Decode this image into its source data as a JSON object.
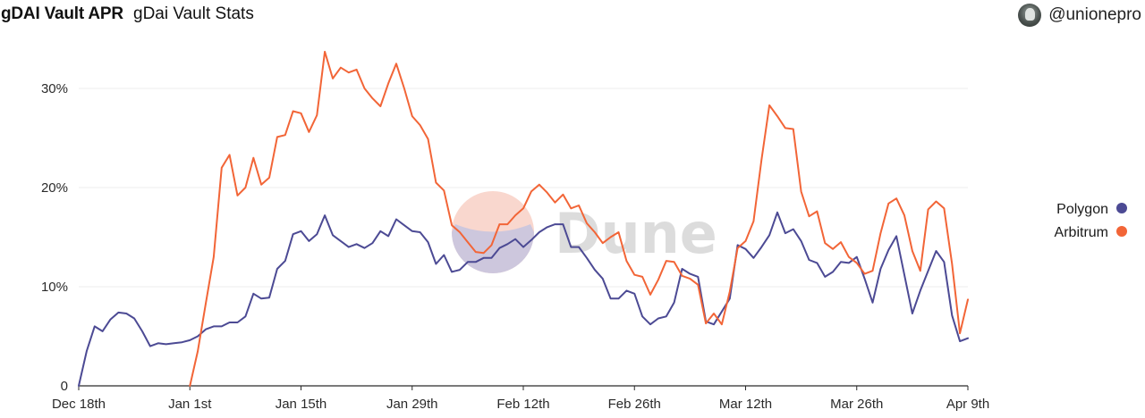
{
  "header": {
    "title": "gDAI Vault APR",
    "subtitle": "gDai Vault Stats",
    "username": "@unionepro"
  },
  "watermark": "Dune",
  "chart_data": {
    "type": "line",
    "title": "gDAI Vault APR",
    "subtitle": "gDai Vault Stats",
    "xlabel": "",
    "ylabel": "",
    "x_ticks": [
      {
        "label": "Dec 18th",
        "day": 0
      },
      {
        "label": "Jan 1st",
        "day": 14
      },
      {
        "label": "Jan 15th",
        "day": 28
      },
      {
        "label": "Jan 29th",
        "day": 42
      },
      {
        "label": "Feb 12th",
        "day": 56
      },
      {
        "label": "Feb 26th",
        "day": 70
      },
      {
        "label": "Mar 12th",
        "day": 84
      },
      {
        "label": "Mar 26th",
        "day": 98
      },
      {
        "label": "Apr 9th",
        "day": 112
      }
    ],
    "y_ticks": [
      {
        "label": "0",
        "value": 0
      },
      {
        "label": "10%",
        "value": 10
      },
      {
        "label": "20%",
        "value": 20
      },
      {
        "label": "30%",
        "value": 30
      }
    ],
    "xlim": [
      0,
      112
    ],
    "ylim": [
      0,
      34
    ],
    "grid": "horizontal",
    "legend": "right",
    "series": [
      {
        "name": "Polygon",
        "color": "#4c4a94",
        "points": [
          [
            0,
            0
          ],
          [
            1,
            3.5
          ],
          [
            2,
            6.0
          ],
          [
            3,
            5.5
          ],
          [
            4,
            6.7
          ],
          [
            5,
            7.4
          ],
          [
            6,
            7.3
          ],
          [
            7,
            6.8
          ],
          [
            8,
            5.5
          ],
          [
            9,
            4.0
          ],
          [
            10,
            4.3
          ],
          [
            11,
            4.2
          ],
          [
            12,
            4.3
          ],
          [
            13,
            4.4
          ],
          [
            14,
            4.6
          ],
          [
            15,
            5.0
          ],
          [
            16,
            5.7
          ],
          [
            17,
            6.0
          ],
          [
            18,
            6.0
          ],
          [
            19,
            6.4
          ],
          [
            20,
            6.4
          ],
          [
            21,
            7.0
          ],
          [
            22,
            9.3
          ],
          [
            23,
            8.8
          ],
          [
            24,
            8.9
          ],
          [
            25,
            11.8
          ],
          [
            26,
            12.6
          ],
          [
            27,
            15.3
          ],
          [
            28,
            15.6
          ],
          [
            29,
            14.6
          ],
          [
            30,
            15.3
          ],
          [
            31,
            17.2
          ],
          [
            32,
            15.2
          ],
          [
            33,
            14.6
          ],
          [
            34,
            14.0
          ],
          [
            35,
            14.3
          ],
          [
            36,
            13.9
          ],
          [
            37,
            14.4
          ],
          [
            38,
            15.6
          ],
          [
            39,
            15.1
          ],
          [
            40,
            16.8
          ],
          [
            41,
            16.2
          ],
          [
            42,
            15.6
          ],
          [
            43,
            15.5
          ],
          [
            44,
            14.5
          ],
          [
            45,
            12.3
          ],
          [
            46,
            13.2
          ],
          [
            47,
            11.5
          ],
          [
            48,
            11.7
          ],
          [
            49,
            12.5
          ],
          [
            50,
            12.5
          ],
          [
            51,
            12.9
          ],
          [
            52,
            12.9
          ],
          [
            53,
            13.9
          ],
          [
            54,
            14.3
          ],
          [
            55,
            14.8
          ],
          [
            56,
            14.0
          ],
          [
            57,
            14.7
          ],
          [
            58,
            15.5
          ],
          [
            59,
            16.0
          ],
          [
            60,
            16.3
          ],
          [
            61,
            16.3
          ],
          [
            62,
            14.0
          ],
          [
            63,
            14.0
          ],
          [
            64,
            12.9
          ],
          [
            65,
            11.7
          ],
          [
            66,
            10.8
          ],
          [
            67,
            8.8
          ],
          [
            68,
            8.8
          ],
          [
            69,
            9.6
          ],
          [
            70,
            9.3
          ],
          [
            71,
            7.0
          ],
          [
            72,
            6.2
          ],
          [
            73,
            6.8
          ],
          [
            74,
            7.0
          ],
          [
            75,
            8.4
          ],
          [
            76,
            11.8
          ],
          [
            77,
            11.3
          ],
          [
            78,
            11.0
          ],
          [
            79,
            6.5
          ],
          [
            80,
            6.2
          ],
          [
            81,
            7.5
          ],
          [
            82,
            8.8
          ],
          [
            83,
            14.2
          ],
          [
            84,
            13.8
          ],
          [
            85,
            12.9
          ],
          [
            86,
            14.0
          ],
          [
            87,
            15.2
          ],
          [
            88,
            17.5
          ],
          [
            89,
            15.4
          ],
          [
            90,
            15.8
          ],
          [
            91,
            14.6
          ],
          [
            92,
            12.7
          ],
          [
            93,
            12.4
          ],
          [
            94,
            11.0
          ],
          [
            95,
            11.5
          ],
          [
            96,
            12.5
          ],
          [
            97,
            12.4
          ],
          [
            98,
            13.0
          ],
          [
            99,
            10.8
          ],
          [
            100,
            8.4
          ],
          [
            101,
            11.8
          ],
          [
            102,
            13.7
          ],
          [
            103,
            15.1
          ],
          [
            104,
            11.2
          ],
          [
            105,
            7.3
          ],
          [
            106,
            9.6
          ],
          [
            107,
            11.6
          ],
          [
            108,
            13.6
          ],
          [
            109,
            12.5
          ],
          [
            110,
            7.1
          ],
          [
            111,
            4.5
          ],
          [
            112,
            4.8
          ]
        ]
      },
      {
        "name": "Arbitrum",
        "color": "#f26537",
        "points": [
          [
            14,
            0
          ],
          [
            15,
            3.5
          ],
          [
            16,
            8.3
          ],
          [
            17,
            13.0
          ],
          [
            18,
            22.0
          ],
          [
            19,
            23.3
          ],
          [
            20,
            19.2
          ],
          [
            21,
            20.0
          ],
          [
            22,
            23.0
          ],
          [
            23,
            20.3
          ],
          [
            24,
            21.0
          ],
          [
            25,
            25.1
          ],
          [
            26,
            25.3
          ],
          [
            27,
            27.7
          ],
          [
            28,
            27.5
          ],
          [
            29,
            25.6
          ],
          [
            30,
            27.3
          ],
          [
            31,
            33.7
          ],
          [
            32,
            31.0
          ],
          [
            33,
            32.1
          ],
          [
            34,
            31.6
          ],
          [
            35,
            31.9
          ],
          [
            36,
            30.0
          ],
          [
            37,
            29.0
          ],
          [
            38,
            28.2
          ],
          [
            39,
            30.5
          ],
          [
            40,
            32.5
          ],
          [
            41,
            30.0
          ],
          [
            42,
            27.2
          ],
          [
            43,
            26.3
          ],
          [
            44,
            24.9
          ],
          [
            45,
            20.5
          ],
          [
            46,
            19.7
          ],
          [
            47,
            16.2
          ],
          [
            48,
            15.5
          ],
          [
            49,
            14.5
          ],
          [
            50,
            13.5
          ],
          [
            51,
            13.4
          ],
          [
            52,
            14.2
          ],
          [
            53,
            16.3
          ],
          [
            54,
            16.3
          ],
          [
            55,
            17.2
          ],
          [
            56,
            17.9
          ],
          [
            57,
            19.6
          ],
          [
            58,
            20.3
          ],
          [
            59,
            19.5
          ],
          [
            60,
            18.5
          ],
          [
            61,
            19.3
          ],
          [
            62,
            17.9
          ],
          [
            63,
            18.2
          ],
          [
            64,
            16.4
          ],
          [
            65,
            15.5
          ],
          [
            66,
            14.4
          ],
          [
            67,
            15.0
          ],
          [
            68,
            15.5
          ],
          [
            69,
            12.6
          ],
          [
            70,
            11.2
          ],
          [
            71,
            11.0
          ],
          [
            72,
            9.2
          ],
          [
            73,
            10.7
          ],
          [
            74,
            12.6
          ],
          [
            75,
            12.5
          ],
          [
            76,
            11.1
          ],
          [
            77,
            10.8
          ],
          [
            78,
            10.2
          ],
          [
            79,
            6.3
          ],
          [
            80,
            7.3
          ],
          [
            81,
            6.2
          ],
          [
            82,
            9.5
          ],
          [
            83,
            13.9
          ],
          [
            84,
            14.6
          ],
          [
            85,
            16.6
          ],
          [
            86,
            22.8
          ],
          [
            87,
            28.3
          ],
          [
            88,
            27.2
          ],
          [
            89,
            26.0
          ],
          [
            90,
            25.9
          ],
          [
            91,
            19.6
          ],
          [
            92,
            17.1
          ],
          [
            93,
            17.6
          ],
          [
            94,
            14.4
          ],
          [
            95,
            13.8
          ],
          [
            96,
            14.5
          ],
          [
            97,
            13.0
          ],
          [
            98,
            12.4
          ],
          [
            99,
            11.3
          ],
          [
            100,
            11.6
          ],
          [
            101,
            15.4
          ],
          [
            102,
            18.4
          ],
          [
            103,
            18.9
          ],
          [
            104,
            17.2
          ],
          [
            105,
            13.6
          ],
          [
            106,
            11.6
          ],
          [
            107,
            17.8
          ],
          [
            108,
            18.6
          ],
          [
            109,
            17.9
          ],
          [
            110,
            12.3
          ],
          [
            111,
            5.3
          ],
          [
            112,
            8.7
          ]
        ]
      }
    ]
  }
}
